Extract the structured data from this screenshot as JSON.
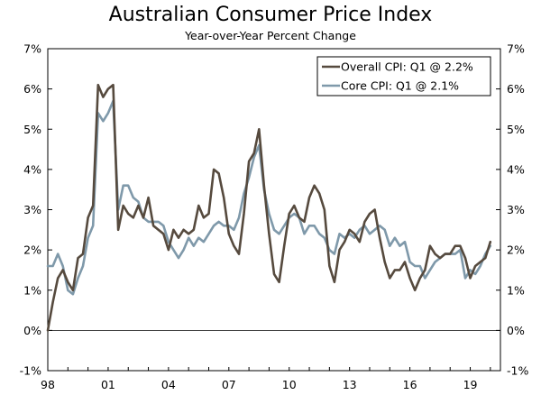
{
  "chart_data": {
    "type": "line",
    "title": "Australian Consumer Price Index",
    "subtitle": "Year-over-Year Percent Change",
    "xlabel": "",
    "ylabel": "",
    "xlim": [
      1998.0,
      2020.5
    ],
    "ylim": [
      -1,
      7
    ],
    "y_ticks": [
      -1,
      0,
      1,
      2,
      3,
      4,
      5,
      6,
      7
    ],
    "y_tick_labels": [
      "-1%",
      "0%",
      "1%",
      "2%",
      "3%",
      "4%",
      "5%",
      "6%",
      "7%"
    ],
    "x_ticks": [
      1998,
      2001,
      2004,
      2007,
      2010,
      2013,
      2016,
      2019
    ],
    "x_tick_labels": [
      "98",
      "01",
      "04",
      "07",
      "10",
      "13",
      "16",
      "19"
    ],
    "grid": false,
    "legend_position": "top-right",
    "series": [
      {
        "name": "Overall CPI: Q1 @ 2.2%",
        "color": "#564a3e",
        "x": [
          1998.0,
          1998.25,
          1998.5,
          1998.75,
          1999.0,
          1999.25,
          1999.5,
          1999.75,
          2000.0,
          2000.25,
          2000.5,
          2000.75,
          2001.0,
          2001.25,
          2001.5,
          2001.75,
          2002.0,
          2002.25,
          2002.5,
          2002.75,
          2003.0,
          2003.25,
          2003.5,
          2003.75,
          2004.0,
          2004.25,
          2004.5,
          2004.75,
          2005.0,
          2005.25,
          2005.5,
          2005.75,
          2006.0,
          2006.25,
          2006.5,
          2006.75,
          2007.0,
          2007.25,
          2007.5,
          2007.75,
          2008.0,
          2008.25,
          2008.5,
          2008.75,
          2009.0,
          2009.25,
          2009.5,
          2009.75,
          2010.0,
          2010.25,
          2010.5,
          2010.75,
          2011.0,
          2011.25,
          2011.5,
          2011.75,
          2012.0,
          2012.25,
          2012.5,
          2012.75,
          2013.0,
          2013.25,
          2013.5,
          2013.75,
          2014.0,
          2014.25,
          2014.5,
          2014.75,
          2015.0,
          2015.25,
          2015.5,
          2015.75,
          2016.0,
          2016.25,
          2016.5,
          2016.75,
          2017.0,
          2017.25,
          2017.5,
          2017.75,
          2018.0,
          2018.25,
          2018.5,
          2018.75,
          2019.0,
          2019.25,
          2019.5,
          2019.75,
          2020.0
        ],
        "values": [
          0.0,
          0.7,
          1.3,
          1.5,
          1.2,
          1.0,
          1.8,
          1.9,
          2.8,
          3.1,
          6.1,
          5.8,
          6.0,
          6.1,
          2.5,
          3.1,
          2.9,
          2.8,
          3.1,
          2.8,
          3.3,
          2.6,
          2.5,
          2.4,
          2.0,
          2.5,
          2.3,
          2.5,
          2.4,
          2.5,
          3.1,
          2.8,
          2.9,
          4.0,
          3.9,
          3.3,
          2.4,
          2.1,
          1.9,
          2.9,
          4.2,
          4.4,
          5.0,
          3.6,
          2.4,
          1.4,
          1.2,
          2.1,
          2.9,
          3.1,
          2.8,
          2.7,
          3.3,
          3.6,
          3.4,
          3.0,
          1.6,
          1.2,
          2.0,
          2.2,
          2.5,
          2.4,
          2.2,
          2.7,
          2.9,
          3.0,
          2.3,
          1.7,
          1.3,
          1.5,
          1.5,
          1.7,
          1.3,
          1.0,
          1.3,
          1.5,
          2.1,
          1.9,
          1.8,
          1.9,
          1.9,
          2.1,
          2.1,
          1.8,
          1.3,
          1.6,
          1.7,
          1.8,
          2.2
        ]
      },
      {
        "name": "Core CPI: Q1 @ 2.1%",
        "color": "#7f99aa",
        "x": [
          1998.0,
          1998.25,
          1998.5,
          1998.75,
          1999.0,
          1999.25,
          1999.5,
          1999.75,
          2000.0,
          2000.25,
          2000.5,
          2000.75,
          2001.0,
          2001.25,
          2001.5,
          2001.75,
          2002.0,
          2002.25,
          2002.5,
          2002.75,
          2003.0,
          2003.25,
          2003.5,
          2003.75,
          2004.0,
          2004.25,
          2004.5,
          2004.75,
          2005.0,
          2005.25,
          2005.5,
          2005.75,
          2006.0,
          2006.25,
          2006.5,
          2006.75,
          2007.0,
          2007.25,
          2007.5,
          2007.75,
          2008.0,
          2008.25,
          2008.5,
          2008.75,
          2009.0,
          2009.25,
          2009.5,
          2009.75,
          2010.0,
          2010.25,
          2010.5,
          2010.75,
          2011.0,
          2011.25,
          2011.5,
          2011.75,
          2012.0,
          2012.25,
          2012.5,
          2012.75,
          2013.0,
          2013.25,
          2013.5,
          2013.75,
          2014.0,
          2014.25,
          2014.5,
          2014.75,
          2015.0,
          2015.25,
          2015.5,
          2015.75,
          2016.0,
          2016.25,
          2016.5,
          2016.75,
          2017.0,
          2017.25,
          2017.5,
          2017.75,
          2018.0,
          2018.25,
          2018.5,
          2018.75,
          2019.0,
          2019.25,
          2019.5,
          2019.75,
          2020.0
        ],
        "values": [
          1.6,
          1.6,
          1.9,
          1.6,
          1.0,
          0.9,
          1.3,
          1.6,
          2.3,
          2.6,
          5.4,
          5.2,
          5.4,
          5.7,
          3.0,
          3.6,
          3.6,
          3.3,
          3.2,
          2.8,
          2.7,
          2.7,
          2.7,
          2.6,
          2.2,
          2.0,
          1.8,
          2.0,
          2.3,
          2.1,
          2.3,
          2.2,
          2.4,
          2.6,
          2.7,
          2.6,
          2.6,
          2.5,
          2.8,
          3.4,
          3.8,
          4.3,
          4.6,
          3.5,
          2.9,
          2.5,
          2.4,
          2.6,
          2.8,
          2.9,
          2.8,
          2.4,
          2.6,
          2.6,
          2.4,
          2.3,
          2.0,
          1.9,
          2.4,
          2.3,
          2.4,
          2.3,
          2.5,
          2.6,
          2.4,
          2.5,
          2.6,
          2.5,
          2.1,
          2.3,
          2.1,
          2.2,
          1.7,
          1.6,
          1.6,
          1.3,
          1.5,
          1.7,
          1.8,
          1.9,
          1.9,
          1.9,
          2.0,
          1.3,
          1.5,
          1.4,
          1.6,
          1.9,
          2.1
        ]
      }
    ]
  }
}
